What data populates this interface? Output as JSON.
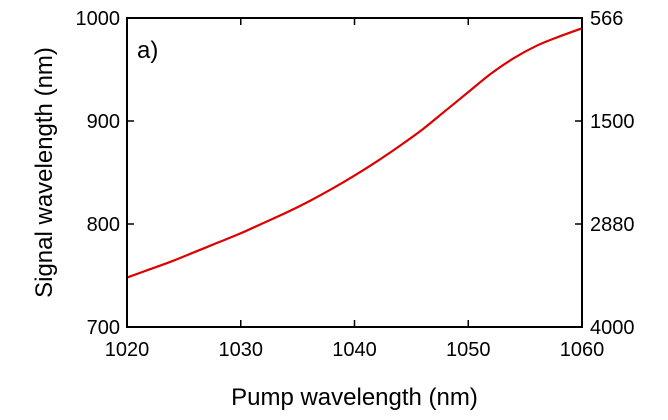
{
  "chart_data": {
    "type": "line",
    "annotation": "a)",
    "xlabel": "Pump wavelength (nm)",
    "ylabel": "Signal wavelength (nm)",
    "xlim": [
      1020,
      1060
    ],
    "ylim": [
      700,
      1000
    ],
    "x_ticks": [
      1020,
      1030,
      1040,
      1050,
      1060
    ],
    "y_ticks": [
      700,
      800,
      900,
      1000
    ],
    "right_axis_ticks": [
      {
        "label": "566",
        "at_signal_wavelength": 1000
      },
      {
        "label": "1500",
        "at_signal_wavelength": 900
      },
      {
        "label": "2880",
        "at_signal_wavelength": 800
      },
      {
        "label": "4000",
        "at_signal_wavelength": 700
      }
    ],
    "series": [
      {
        "color": "#dd0000",
        "x": [
          1020,
          1022,
          1024,
          1026,
          1028,
          1030,
          1032,
          1034,
          1036,
          1038,
          1040,
          1042,
          1044,
          1046,
          1048,
          1050,
          1052,
          1054,
          1056,
          1058,
          1060
        ],
        "y": [
          748,
          756,
          764,
          773,
          782,
          791,
          801,
          811,
          822,
          834,
          847,
          861,
          876,
          892,
          910,
          928,
          946,
          961,
          973,
          982,
          990
        ]
      }
    ]
  }
}
